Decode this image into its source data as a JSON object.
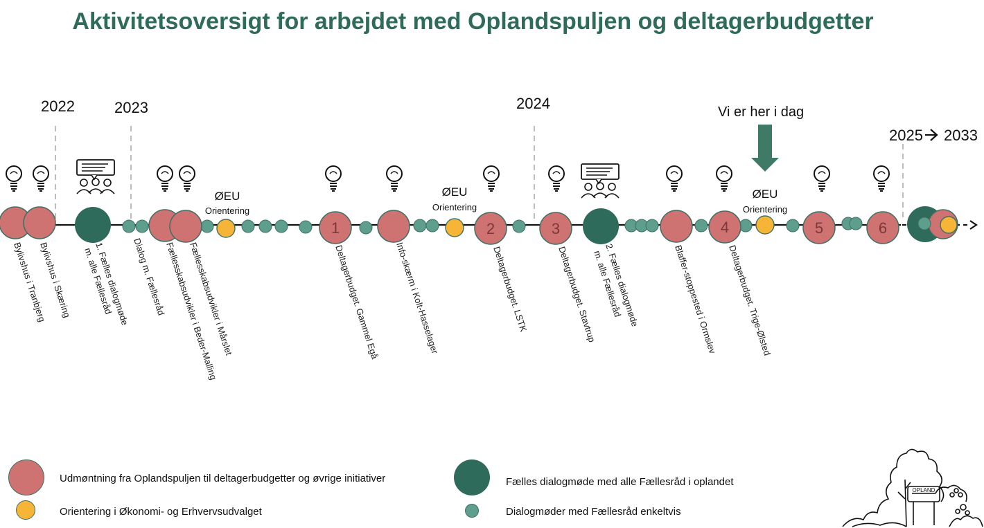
{
  "title": "Aktivitetsoversigt for arbejdet med Oplandspuljen og deltagerbudgetter",
  "colors": {
    "title": "#2e6b5a",
    "udmoentning": "#cf7272",
    "faelles": "#2f6b5a",
    "dialog": "#5d9e8d",
    "orientering": "#f7b538"
  },
  "years": [
    "2022",
    "2023",
    "2024",
    "2025",
    "2033"
  ],
  "here_marker": "Vi er her i dag",
  "oeu_label": "ØEU",
  "orientering_label": "Orientering",
  "numbers": [
    "1",
    "2",
    "3",
    "4",
    "5",
    "6"
  ],
  "event_labels": [
    "Bylivshus i Tranbjerg",
    "Bylivshus i Skæring",
    "1. Fælles dialogmøde",
    "m. alle Fællesråd",
    "Dialog m. Fællesråd",
    "Fællesskabsudvikler i Beder-Malling",
    "Fællesskabsudvikler i Mårslet",
    "Deltagerbudget. Gammel Egå",
    "Info-skærm i Kolt-Hasselager",
    "Deltagerbudget. LSTK",
    "Deltagerbudget. Stavtrup",
    "2. Fælles dialogmøde",
    "m. alle Fællesråd",
    "Blaffer-stoppested i Ormslev",
    "Deltagerbudget. Trige-Ølsted"
  ],
  "icons": [
    "lightbulb-icon",
    "meeting-speech-icon",
    "down-arrow-icon",
    "right-arrow-icon",
    "opland-logo-icon"
  ],
  "legend": [
    "Udmøntning fra Oplandspuljen til deltagerbudgetter og øvrige initiativer",
    "Orientering i Økonomi- og Erhvervsudvalget",
    "Fælles dialogmøde med alle Fællesråd i oplandet",
    "Dialogmøder med Fællesråd enkeltvis"
  ],
  "logo_text": "OPLAND"
}
